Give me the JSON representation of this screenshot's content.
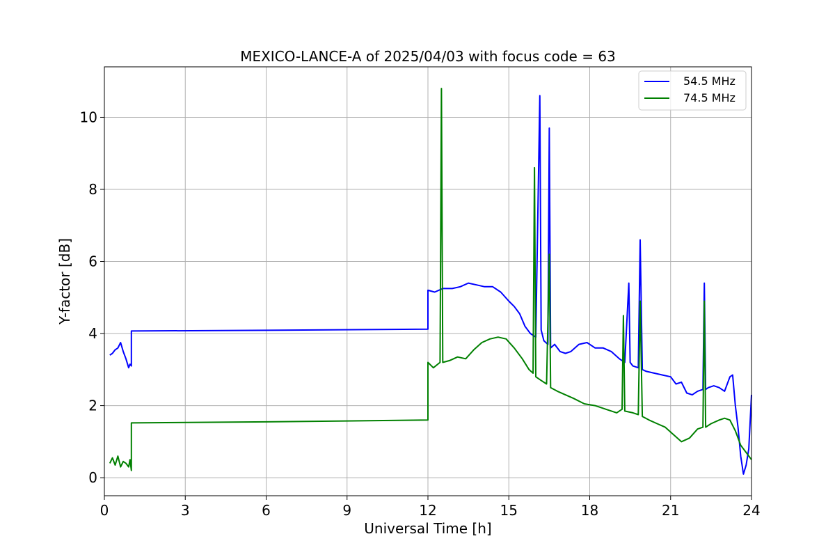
{
  "chart_data": {
    "type": "line",
    "title": "MEXICO-LANCE-A of 2025/04/03 with focus code = 63",
    "xlabel": "Universal Time [h]",
    "ylabel": "Y-factor [dB]",
    "xlim": [
      0,
      24
    ],
    "ylim": [
      -0.5,
      11.4
    ],
    "xticks": [
      0,
      3,
      6,
      9,
      12,
      15,
      18,
      21,
      24
    ],
    "yticks": [
      0,
      2,
      4,
      6,
      8,
      10
    ],
    "grid": true,
    "legend_position": "top-right",
    "series": [
      {
        "name": "54.5 MHz",
        "color": "#0000ff",
        "x": [
          0.2,
          0.3,
          0.4,
          0.5,
          0.6,
          0.7,
          0.8,
          0.9,
          0.95,
          1.0,
          1.0,
          6.0,
          12.0,
          12.0,
          12.25,
          12.55,
          12.9,
          13.2,
          13.5,
          13.8,
          14.1,
          14.4,
          14.7,
          15.0,
          15.2,
          15.4,
          15.6,
          15.8,
          16.0,
          16.15,
          16.2,
          16.3,
          16.45,
          16.5,
          16.55,
          16.7,
          16.9,
          17.1,
          17.3,
          17.6,
          17.9,
          18.2,
          18.5,
          18.8,
          19.1,
          19.3,
          19.45,
          19.5,
          19.6,
          19.8,
          19.87,
          19.95,
          20.1,
          20.4,
          20.7,
          21.0,
          21.2,
          21.4,
          21.6,
          21.8,
          22.0,
          22.2,
          22.25,
          22.3,
          22.4,
          22.6,
          22.8,
          23.0,
          23.2,
          23.3,
          23.4,
          23.5,
          23.6,
          23.7,
          23.8,
          23.9,
          24.0
        ],
        "y": [
          3.4,
          3.45,
          3.55,
          3.6,
          3.75,
          3.5,
          3.3,
          3.05,
          3.15,
          3.1,
          4.07,
          4.09,
          4.12,
          5.2,
          5.15,
          5.25,
          5.25,
          5.3,
          5.4,
          5.35,
          5.3,
          5.3,
          5.15,
          4.9,
          4.75,
          4.55,
          4.2,
          4.0,
          3.9,
          10.6,
          4.1,
          3.8,
          3.7,
          9.7,
          3.6,
          3.7,
          3.5,
          3.45,
          3.5,
          3.7,
          3.75,
          3.6,
          3.6,
          3.5,
          3.3,
          3.2,
          5.4,
          3.2,
          3.1,
          3.05,
          6.6,
          3.0,
          2.95,
          2.9,
          2.85,
          2.8,
          2.6,
          2.65,
          2.35,
          2.3,
          2.4,
          2.45,
          5.4,
          2.45,
          2.5,
          2.55,
          2.5,
          2.4,
          2.8,
          2.85,
          2.0,
          1.4,
          0.6,
          0.1,
          0.35,
          0.8,
          2.3
        ]
      },
      {
        "name": "74.5 MHz",
        "color": "#008000",
        "x": [
          0.2,
          0.3,
          0.4,
          0.5,
          0.6,
          0.7,
          0.8,
          0.9,
          0.95,
          1.0,
          1.0,
          6.0,
          12.0,
          12.0,
          12.2,
          12.45,
          12.5,
          12.55,
          12.8,
          13.1,
          13.4,
          13.7,
          14.0,
          14.3,
          14.6,
          14.9,
          15.2,
          15.5,
          15.75,
          15.9,
          15.95,
          16.0,
          16.2,
          16.4,
          16.5,
          16.55,
          16.8,
          17.1,
          17.4,
          17.8,
          18.2,
          18.6,
          19.0,
          19.2,
          19.25,
          19.3,
          19.6,
          19.8,
          19.87,
          19.95,
          20.2,
          20.5,
          20.8,
          21.1,
          21.4,
          21.7,
          22.0,
          22.2,
          22.25,
          22.3,
          22.5,
          22.8,
          23.0,
          23.2,
          23.4,
          23.6,
          23.8,
          24.0
        ],
        "y": [
          0.4,
          0.55,
          0.35,
          0.6,
          0.3,
          0.45,
          0.4,
          0.3,
          0.5,
          0.2,
          1.52,
          1.55,
          1.6,
          3.2,
          3.05,
          3.2,
          10.8,
          3.2,
          3.25,
          3.35,
          3.3,
          3.55,
          3.75,
          3.85,
          3.9,
          3.85,
          3.6,
          3.3,
          3.0,
          2.9,
          8.6,
          2.8,
          2.7,
          2.6,
          6.2,
          2.5,
          2.4,
          2.3,
          2.2,
          2.05,
          2.0,
          1.9,
          1.8,
          1.9,
          4.5,
          1.85,
          1.8,
          1.75,
          4.9,
          1.7,
          1.6,
          1.5,
          1.4,
          1.2,
          1.0,
          1.1,
          1.35,
          1.4,
          4.9,
          1.4,
          1.5,
          1.6,
          1.65,
          1.6,
          1.3,
          0.9,
          0.7,
          0.5
        ]
      }
    ]
  }
}
